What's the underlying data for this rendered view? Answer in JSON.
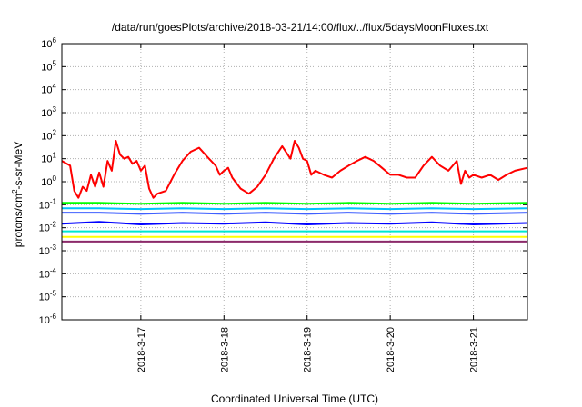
{
  "chart_data": {
    "type": "line",
    "title": "/data/run/goesPlots/archive/2018-03-21/14:00/flux/../flux/5daysMoonFluxes.txt",
    "xlabel": "Coordinated Universal Time (UTC)",
    "ylabel": {
      "prefix": "protons/cm",
      "sup": "2",
      "suffix": "-s-sr-MeV"
    },
    "x_unit": "days since 2018-03-16 00:00 UTC",
    "xlim": [
      0.05,
      5.65
    ],
    "ylog": true,
    "ylim_exp": [
      -6,
      6
    ],
    "xticks": [
      {
        "x": 1,
        "label": "2018-3-17"
      },
      {
        "x": 2,
        "label": "2018-3-18"
      },
      {
        "x": 3,
        "label": "2018-3-19"
      },
      {
        "x": 4,
        "label": "2018-3-20"
      },
      {
        "x": 5,
        "label": "2018-3-21"
      }
    ],
    "yticks": [
      {
        "exp": 6,
        "base": "10",
        "sup": "6"
      },
      {
        "exp": 5,
        "base": "10",
        "sup": "5"
      },
      {
        "exp": 4,
        "base": "10",
        "sup": "4"
      },
      {
        "exp": 3,
        "base": "10",
        "sup": "3"
      },
      {
        "exp": 2,
        "base": "10",
        "sup": "2"
      },
      {
        "exp": 1,
        "base": "10",
        "sup": "1"
      },
      {
        "exp": 0,
        "base": "10",
        "sup": "0"
      },
      {
        "exp": -1,
        "base": "10",
        "sup": "-1"
      },
      {
        "exp": -2,
        "base": "10",
        "sup": "-2"
      },
      {
        "exp": -3,
        "base": "10",
        "sup": "-3"
      },
      {
        "exp": -4,
        "base": "10",
        "sup": "-4"
      },
      {
        "exp": -5,
        "base": "10",
        "sup": "-5"
      },
      {
        "exp": -6,
        "base": "10",
        "sup": "-6"
      }
    ],
    "grid": true,
    "series": [
      {
        "color": "#ff0000",
        "x": [
          0.05,
          0.15,
          0.2,
          0.25,
          0.3,
          0.35,
          0.4,
          0.45,
          0.5,
          0.55,
          0.6,
          0.65,
          0.7,
          0.75,
          0.8,
          0.85,
          0.9,
          0.95,
          1.0,
          1.05,
          1.1,
          1.15,
          1.2,
          1.3,
          1.4,
          1.5,
          1.6,
          1.7,
          1.8,
          1.9,
          1.95,
          2.0,
          2.05,
          2.1,
          2.2,
          2.3,
          2.4,
          2.5,
          2.6,
          2.7,
          2.8,
          2.85,
          2.9,
          2.95,
          3.0,
          3.05,
          3.1,
          3.2,
          3.3,
          3.4,
          3.5,
          3.6,
          3.7,
          3.8,
          3.9,
          4.0,
          4.1,
          4.2,
          4.3,
          4.4,
          4.5,
          4.6,
          4.7,
          4.8,
          4.85,
          4.9,
          4.95,
          5.0,
          5.1,
          5.2,
          5.3,
          5.4,
          5.5,
          5.65
        ],
        "y": [
          8,
          5,
          0.4,
          0.2,
          0.6,
          0.4,
          2,
          0.6,
          2.5,
          0.6,
          8,
          3,
          60,
          15,
          10,
          12,
          6,
          8,
          3,
          5,
          0.5,
          0.2,
          0.3,
          0.4,
          2,
          8,
          20,
          30,
          12,
          5,
          2,
          3,
          4,
          1.5,
          0.5,
          0.3,
          0.6,
          2,
          10,
          35,
          10,
          60,
          30,
          10,
          8,
          2,
          3,
          2,
          1.5,
          3,
          5,
          8,
          12,
          8,
          4,
          2,
          2,
          1.5,
          1.5,
          5,
          12,
          5,
          3,
          8,
          0.8,
          3,
          1.5,
          2,
          1.5,
          2,
          1.2,
          2,
          3,
          4
        ]
      },
      {
        "color": "#00ff00",
        "x": [
          0.05,
          0.5,
          1.0,
          1.5,
          2.0,
          2.5,
          3.0,
          3.5,
          4.0,
          4.5,
          5.0,
          5.65
        ],
        "y": [
          0.12,
          0.12,
          0.11,
          0.12,
          0.11,
          0.12,
          0.11,
          0.12,
          0.11,
          0.12,
          0.11,
          0.12
        ]
      },
      {
        "color": "#00c0ff",
        "x": [
          0.05,
          0.5,
          1.0,
          1.5,
          2.0,
          2.5,
          3.0,
          3.5,
          4.0,
          4.5,
          5.0,
          5.65
        ],
        "y": [
          0.07,
          0.07,
          0.065,
          0.07,
          0.065,
          0.07,
          0.065,
          0.07,
          0.065,
          0.07,
          0.065,
          0.07
        ]
      },
      {
        "color": "#4060ff",
        "x": [
          0.05,
          0.5,
          1.0,
          1.5,
          2.0,
          2.5,
          3.0,
          3.5,
          4.0,
          4.5,
          5.0,
          5.65
        ],
        "y": [
          0.045,
          0.045,
          0.04,
          0.045,
          0.04,
          0.045,
          0.04,
          0.045,
          0.04,
          0.045,
          0.04,
          0.045
        ]
      },
      {
        "color": "#0000ff",
        "x": [
          0.05,
          0.5,
          1.0,
          1.5,
          2.0,
          2.5,
          3.0,
          3.5,
          4.0,
          4.5,
          5.0,
          5.65
        ],
        "y": [
          0.015,
          0.018,
          0.014,
          0.016,
          0.015,
          0.017,
          0.014,
          0.016,
          0.015,
          0.017,
          0.014,
          0.016
        ]
      },
      {
        "color": "#00e8d0",
        "x": [
          0.05,
          0.5,
          1.0,
          1.5,
          2.0,
          2.5,
          3.0,
          3.5,
          4.0,
          4.5,
          5.0,
          5.65
        ],
        "y": [
          0.007,
          0.007,
          0.007,
          0.007,
          0.007,
          0.007,
          0.007,
          0.007,
          0.007,
          0.007,
          0.007,
          0.007
        ]
      },
      {
        "color": "#ffff00",
        "x": [
          0.05,
          0.5,
          1.0,
          1.5,
          2.0,
          2.5,
          3.0,
          3.5,
          4.0,
          4.5,
          5.0,
          5.65
        ],
        "y": [
          0.004,
          0.004,
          0.004,
          0.004,
          0.004,
          0.004,
          0.004,
          0.004,
          0.004,
          0.004,
          0.004,
          0.004
        ]
      },
      {
        "color": "#8b2a6a",
        "x": [
          0.05,
          0.5,
          1.0,
          1.5,
          2.0,
          2.5,
          3.0,
          3.5,
          4.0,
          4.5,
          5.0,
          5.65
        ],
        "y": [
          0.0025,
          0.0025,
          0.0025,
          0.0025,
          0.0025,
          0.0025,
          0.0025,
          0.0025,
          0.0025,
          0.0025,
          0.0025,
          0.0025
        ]
      }
    ]
  }
}
